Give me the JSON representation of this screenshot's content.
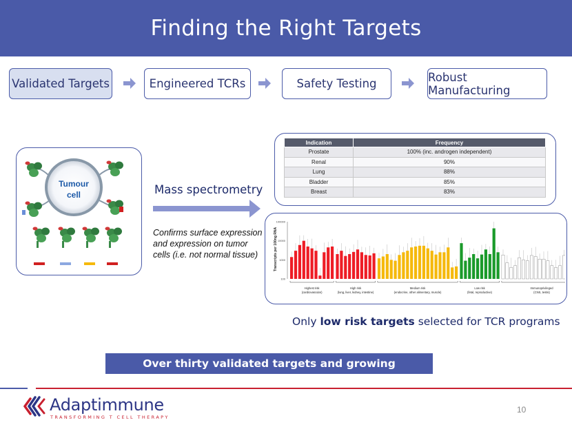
{
  "title": "Finding the Right Targets",
  "steps": [
    {
      "label": "Validated Targets"
    },
    {
      "label": "Engineered TCRs"
    },
    {
      "label": "Safety Testing"
    },
    {
      "label": "Robust Manufacturing"
    }
  ],
  "cell_diagram": {
    "label_line1": "Tumour",
    "label_line2": "cell"
  },
  "mass_spec": {
    "label": "Mass spectrometry",
    "note": "Confirms surface expression and expression on tumor cells (i.e. not normal tissue)"
  },
  "frequency_table": {
    "headers": [
      "Indication",
      "Frequency"
    ],
    "rows": [
      [
        "Prostate",
        "100% (inc. androgen independent)"
      ],
      [
        "Renal",
        "90%"
      ],
      [
        "Lung",
        "88%"
      ],
      [
        "Bladder",
        "85%"
      ],
      [
        "Breast",
        "83%"
      ]
    ]
  },
  "chart_data": {
    "type": "bar",
    "ylabel": "Transcripts per 100ng RNA",
    "yticks": [
      "100000",
      "10000",
      "1000",
      "100"
    ],
    "log_scale": true,
    "groups": [
      {
        "label_line1": "Highest risk",
        "label_line2": "(cardiovascular)",
        "color": "#ee1c25",
        "values": [
          1400,
          3000,
          6000,
          10000,
          5000,
          4000,
          3000,
          150,
          2500,
          4500,
          5000
        ]
      },
      {
        "label_line1": "High risk",
        "label_line2": "(lung, liver, kidney, intestine)",
        "color": "#ee1c25",
        "values": [
          2000,
          3000,
          1600,
          2000,
          2600,
          3500,
          2500,
          1800,
          1700,
          2200
        ]
      },
      {
        "label_line1": "Medium risk",
        "label_line2": "(endocrine, other alimentary, muscle)",
        "color": "#f5b90c",
        "values": [
          1200,
          1500,
          2000,
          1000,
          900,
          1800,
          2500,
          3000,
          4500,
          5000,
          5500,
          5500,
          4000,
          3000,
          1900,
          2500,
          2500,
          4500,
          400,
          450
        ]
      },
      {
        "label_line1": "Low risk",
        "label_line2": "(fetal, reproductive)",
        "color": "#1a9a2a",
        "values": [
          7500,
          900,
          1300,
          2000,
          1200,
          1900,
          3500,
          2000,
          45000,
          2500
        ]
      },
      {
        "label_line1": "Immunoprivileged",
        "label_line2": "(CNS, testis)",
        "color": "#ffffff",
        "values": [
          1800,
          700,
          400,
          500,
          1300,
          1000,
          900,
          1700,
          1500,
          1100,
          1100,
          900,
          500,
          400,
          500,
          1700,
          600,
          1800,
          800,
          1000
        ]
      }
    ]
  },
  "only_text": {
    "prefix": "Only ",
    "bold": "low risk targets",
    "suffix": " selected for TCR programs"
  },
  "banner": "Over thirty validated targets and growing",
  "logo": {
    "name": "Adaptimmune",
    "tagline": "TRANSFORMING T CELL THERAPY"
  },
  "page_number": "10",
  "colors": {
    "header": "#4a5aa8",
    "accent_red": "#c8202f",
    "text_dark": "#1d2a6a"
  }
}
